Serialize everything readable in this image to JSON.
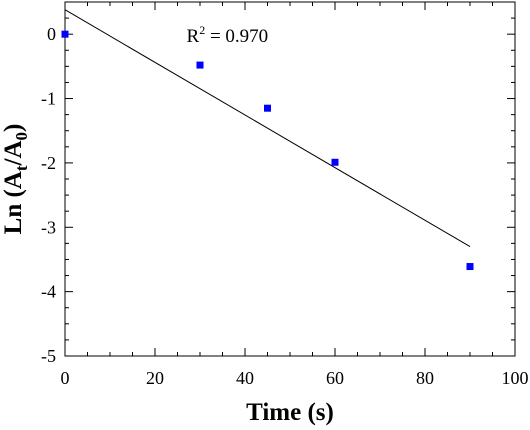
{
  "chart_data": {
    "type": "scatter",
    "xlabel": "Time (s)",
    "ylabel": {
      "prefix": "Ln (A",
      "sub1": "t",
      "mid": "/A",
      "sub2": "0",
      "suffix": ")"
    },
    "xlim": [
      0,
      100
    ],
    "ylim": [
      -5,
      0.5
    ],
    "xticks": [
      0,
      20,
      40,
      60,
      80,
      100
    ],
    "yticks": [
      0,
      -1,
      -2,
      -3,
      -4,
      -5
    ],
    "grid": false,
    "series": [
      {
        "marker": "square",
        "color": "#0000ff",
        "points": [
          {
            "x": 0,
            "y": 0
          },
          {
            "x": 30,
            "y": -0.48
          },
          {
            "x": 45,
            "y": -1.15
          },
          {
            "x": 60,
            "y": -1.99
          },
          {
            "x": 90,
            "y": -3.61
          }
        ]
      }
    ],
    "fit_line": {
      "x": [
        0,
        90
      ],
      "y": [
        0.38,
        -3.3
      ],
      "color": "#000000"
    },
    "annotation": {
      "text_base": "R",
      "text_sup": "2",
      "text_rest": " = 0.970",
      "x": 27,
      "y": -0.12
    }
  }
}
